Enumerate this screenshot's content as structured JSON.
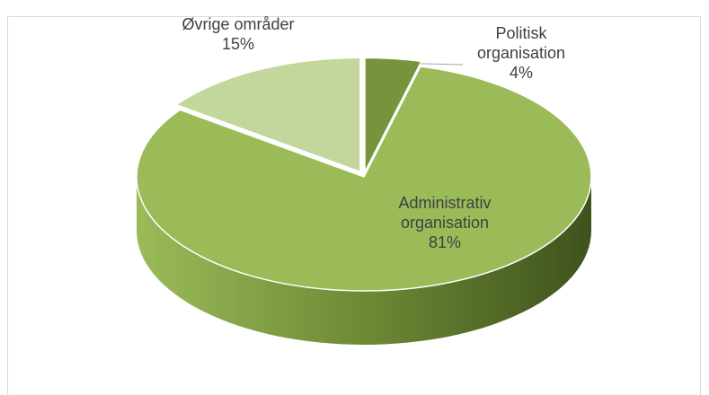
{
  "chart_data": {
    "type": "pie",
    "categories": [
      "Politisk organisation",
      "Administrativ organisation",
      "Øvrige områder"
    ],
    "values": [
      4,
      81,
      15
    ],
    "value_labels": [
      "4%",
      "81%",
      "15%"
    ],
    "colors": [
      "#77933c",
      "#9bbb59",
      "#c3d69b"
    ]
  }
}
